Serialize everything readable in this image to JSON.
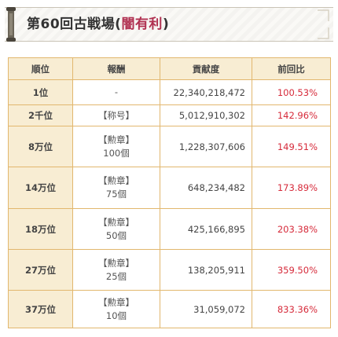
{
  "banner": {
    "title_prefix": "第60回古戦場(",
    "title_accent": "闇有利",
    "title_suffix": ")",
    "accent_color": "#b03050"
  },
  "table": {
    "headers": [
      "順位",
      "報酬",
      "貢献度",
      "前回比"
    ],
    "rows": [
      {
        "rank": "1位",
        "reward_line1": "-",
        "reward_line2": "",
        "contribution": "22,340,218,472",
        "ratio": "100.53%"
      },
      {
        "rank": "2千位",
        "reward_line1": "【称号】",
        "reward_line2": "",
        "contribution": "5,012,910,302",
        "ratio": "142.96%"
      },
      {
        "rank": "8万位",
        "reward_line1": "【勲章】",
        "reward_line2": "100個",
        "contribution": "1,228,307,606",
        "ratio": "149.51%"
      },
      {
        "rank": "14万位",
        "reward_line1": "【勲章】",
        "reward_line2": "75個",
        "contribution": "648,234,482",
        "ratio": "173.89%"
      },
      {
        "rank": "18万位",
        "reward_line1": "【勲章】",
        "reward_line2": "50個",
        "contribution": "425,166,895",
        "ratio": "203.38%"
      },
      {
        "rank": "27万位",
        "reward_line1": "【勲章】",
        "reward_line2": "25個",
        "contribution": "138,205,911",
        "ratio": "359.50%"
      },
      {
        "rank": "37万位",
        "reward_line1": "【勲章】",
        "reward_line2": "10個",
        "contribution": "31,059,072",
        "ratio": "833.36%"
      }
    ],
    "border_color": "#e2b76e",
    "header_bg": "#f8edd3",
    "ratio_color": "#d62a3a"
  },
  "icons": {
    "left_ornament": "scroll-ornament-icon",
    "right_ornament": "corner-decoration-icon"
  }
}
